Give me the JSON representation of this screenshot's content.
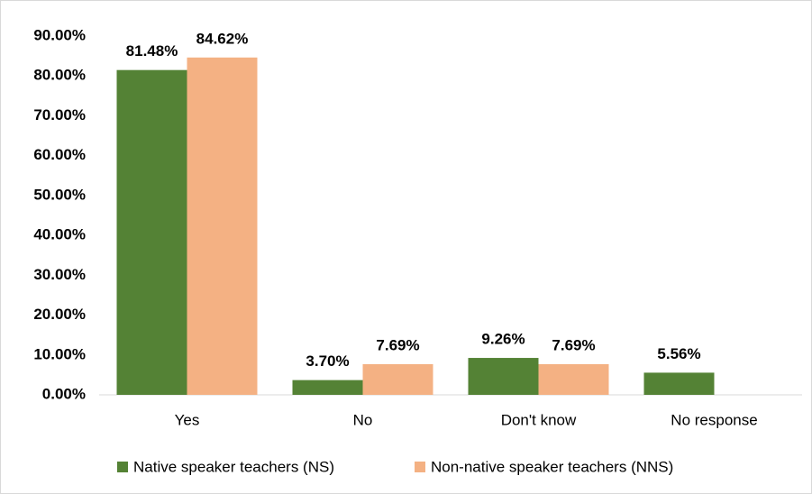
{
  "chart_data": {
    "type": "bar",
    "categories": [
      "Yes",
      "No",
      "Don't know",
      "No response"
    ],
    "series": [
      {
        "name": "Native speaker teachers (NS)",
        "color": "#548235",
        "values": [
          81.48,
          3.7,
          9.26,
          5.56
        ],
        "value_labels": [
          "81.48%",
          "3.70%",
          "9.26%",
          "5.56%"
        ]
      },
      {
        "name": "Non-native speaker teachers (NNS)",
        "color": "#f4b183",
        "values": [
          84.62,
          7.69,
          7.69,
          null
        ],
        "value_labels": [
          "84.62%",
          "7.69%",
          "7.69%",
          null
        ]
      }
    ],
    "ylim": [
      0,
      90
    ],
    "yticks": [
      {
        "value": 0,
        "label": "0.00%"
      },
      {
        "value": 10,
        "label": "10.00%"
      },
      {
        "value": 20,
        "label": "20.00%"
      },
      {
        "value": 30,
        "label": "30.00%"
      },
      {
        "value": 40,
        "label": "40.00%"
      },
      {
        "value": 50,
        "label": "50.00%"
      },
      {
        "value": 60,
        "label": "60.00%"
      },
      {
        "value": 70,
        "label": "70.00%"
      },
      {
        "value": 80,
        "label": "80.00%"
      },
      {
        "value": 90,
        "label": "90.00%"
      }
    ],
    "grid": false,
    "legend": "bottom"
  }
}
